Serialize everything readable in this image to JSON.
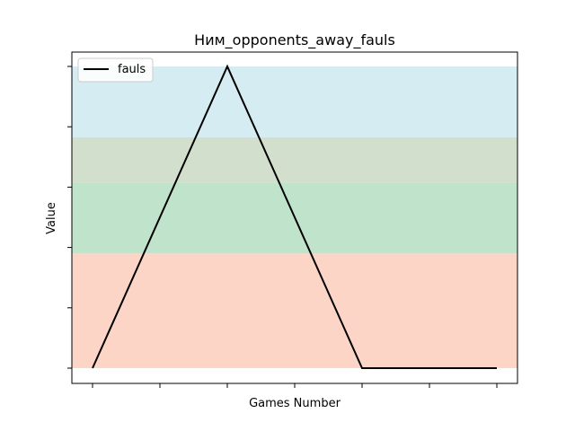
{
  "chart_data": {
    "type": "line",
    "title": "Ним_opponents_away_fauls",
    "xlabel": "Games Number",
    "ylabel": "Value",
    "x": [
      0,
      1,
      2,
      3
    ],
    "ylim": [
      0,
      1
    ],
    "series": [
      {
        "name": "fauls",
        "color": "#000000",
        "values": [
          0,
          1,
          0,
          0
        ]
      }
    ],
    "bands": [
      {
        "from": 0.0,
        "to": 0.38,
        "color": "#fdd5c7"
      },
      {
        "from": 0.38,
        "to": 0.615,
        "color": "#bfe4cb"
      },
      {
        "from": 0.615,
        "to": 0.765,
        "color": "#d3dfcd"
      },
      {
        "from": 0.765,
        "to": 1.0,
        "color": "#d5edf2"
      }
    ],
    "legend": {
      "position": "top-left"
    },
    "grid": false
  }
}
